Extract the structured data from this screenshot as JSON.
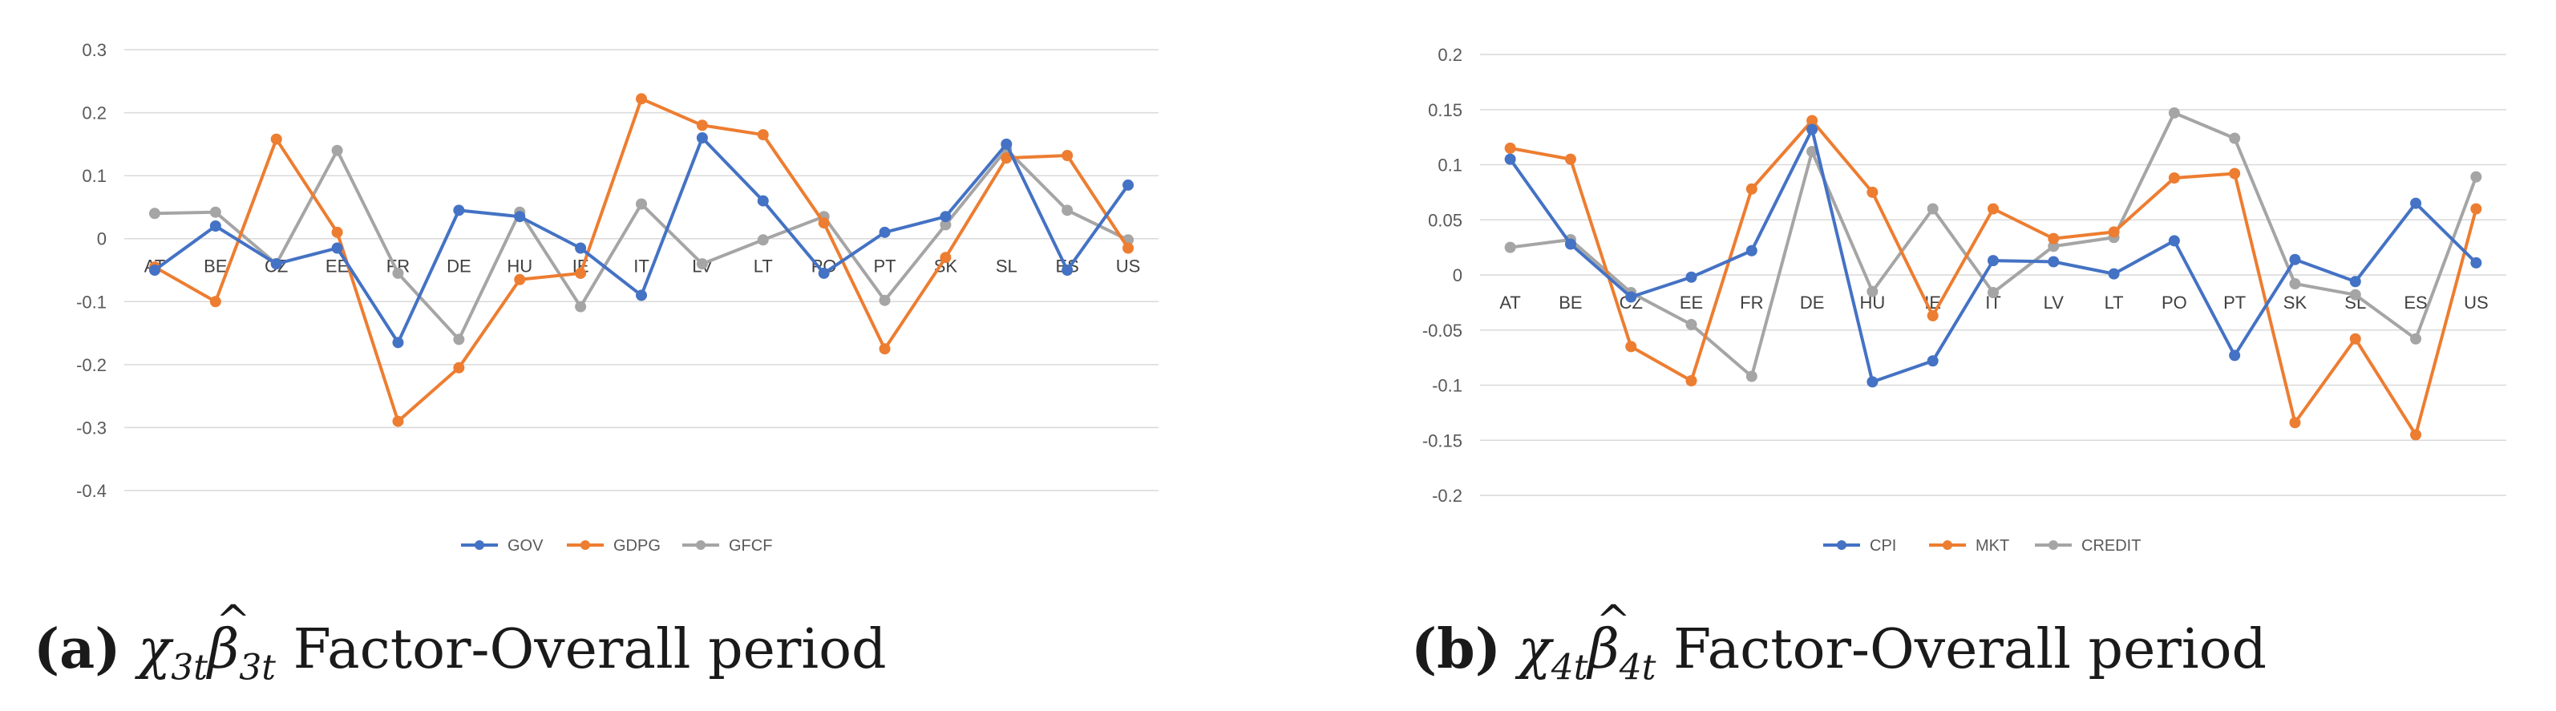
{
  "chart_data": [
    {
      "type": "line",
      "panel": "a",
      "categories": [
        "AT",
        "BE",
        "CZ",
        "EE",
        "FR",
        "DE",
        "HU",
        "IE",
        "IT",
        "LV",
        "LT",
        "PO",
        "PT",
        "SK",
        "SL",
        "ES",
        "US"
      ],
      "series": [
        {
          "name": "GOV",
          "color": "#4472C4",
          "values": [
            -0.05,
            0.02,
            -0.04,
            -0.015,
            -0.165,
            0.045,
            0.035,
            -0.015,
            -0.09,
            0.16,
            0.06,
            -0.055,
            0.01,
            0.035,
            0.15,
            -0.05,
            0.085
          ]
        },
        {
          "name": "GDPG",
          "color": "#ED7D31",
          "values": [
            -0.045,
            -0.1,
            0.158,
            0.01,
            -0.29,
            -0.205,
            -0.065,
            -0.055,
            0.222,
            0.18,
            0.165,
            0.025,
            -0.175,
            -0.03,
            0.128,
            0.132,
            -0.015
          ]
        },
        {
          "name": "GFCF",
          "color": "#A5A5A5",
          "values": [
            0.04,
            0.042,
            -0.04,
            0.14,
            -0.055,
            -0.16,
            0.042,
            -0.108,
            0.055,
            -0.04,
            -0.002,
            0.035,
            -0.098,
            0.022,
            0.142,
            0.045,
            -0.002
          ]
        }
      ],
      "yticks": [
        "0.3",
        "0.2",
        "0.1",
        "0",
        "-0.1",
        "-0.2",
        "-0.3",
        "-0.4"
      ],
      "ylim": [
        -0.4,
        0.3
      ],
      "legend_position": "bottom"
    },
    {
      "type": "line",
      "panel": "b",
      "categories": [
        "AT",
        "BE",
        "CZ",
        "EE",
        "FR",
        "DE",
        "HU",
        "IE",
        "IT",
        "LV",
        "LT",
        "PO",
        "PT",
        "SK",
        "SL",
        "ES",
        "US"
      ],
      "series": [
        {
          "name": "CPI",
          "color": "#4472C4",
          "values": [
            0.105,
            0.028,
            -0.02,
            -0.002,
            0.022,
            0.132,
            -0.097,
            -0.078,
            0.013,
            0.012,
            0.001,
            0.031,
            -0.073,
            0.014,
            -0.006,
            0.065,
            0.011
          ]
        },
        {
          "name": "MKT",
          "color": "#ED7D31",
          "values": [
            0.115,
            0.105,
            -0.065,
            -0.096,
            0.078,
            0.14,
            0.075,
            -0.037,
            0.06,
            0.033,
            0.039,
            0.088,
            0.092,
            -0.134,
            -0.058,
            -0.145,
            0.06
          ]
        },
        {
          "name": "CREDIT",
          "color": "#A5A5A5",
          "values": [
            0.025,
            0.032,
            -0.016,
            -0.045,
            -0.092,
            0.112,
            -0.015,
            0.06,
            -0.016,
            0.026,
            0.034,
            0.147,
            0.124,
            -0.008,
            -0.018,
            -0.058,
            0.089
          ]
        }
      ],
      "yticks": [
        "0.2",
        "0.15",
        "0.1",
        "0.05",
        "0",
        "-0.05",
        "-0.1",
        "-0.15",
        "-0.2"
      ],
      "ylim": [
        -0.2,
        0.2
      ],
      "legend_position": "bottom"
    }
  ],
  "captions": {
    "a": {
      "label": "(a)",
      "math_chi": "χ",
      "sub1": "3t",
      "math_beta": "β",
      "sub2": "3t",
      "text": " Factor-Overall period"
    },
    "b": {
      "label": "(b)",
      "math_chi": "χ",
      "sub1": "4t",
      "math_beta": "β",
      "sub2": "4t",
      "text": " Factor-Overall period"
    }
  }
}
